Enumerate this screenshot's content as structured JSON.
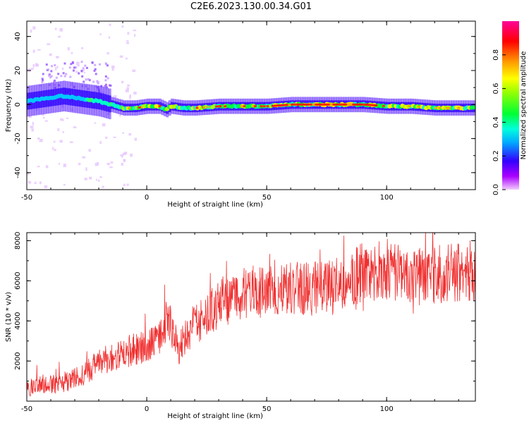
{
  "title": "C2E6.2023.130.00.34.G01",
  "chart_data": [
    {
      "type": "heatmap",
      "xlabel": "Height of straight line (km)",
      "ylabel": "Frequency (Hz)",
      "xlim": [
        -50,
        137
      ],
      "ylim": [
        -50,
        49
      ],
      "xticks": [
        -50,
        0,
        50,
        100
      ],
      "yticks": [
        -40,
        -20,
        0,
        20,
        40
      ],
      "ridge": [
        [
          -50,
          2
        ],
        [
          -45,
          3
        ],
        [
          -40,
          4
        ],
        [
          -35,
          5
        ],
        [
          -30,
          4
        ],
        [
          -25,
          3
        ],
        [
          -20,
          2
        ],
        [
          -15,
          0
        ],
        [
          -10,
          -2
        ],
        [
          -5,
          -2
        ],
        [
          0,
          -1
        ],
        [
          5,
          -1
        ],
        [
          8,
          -3
        ],
        [
          10,
          -1
        ],
        [
          15,
          -2
        ],
        [
          20,
          -2
        ],
        [
          30,
          -1
        ],
        [
          40,
          -1
        ],
        [
          50,
          -1
        ],
        [
          60,
          0
        ],
        [
          70,
          0
        ],
        [
          80,
          0
        ],
        [
          90,
          0
        ],
        [
          100,
          -1
        ],
        [
          110,
          -1
        ],
        [
          120,
          -2
        ],
        [
          130,
          -2
        ],
        [
          137,
          -2
        ]
      ],
      "colorbar": {
        "label": "Normalized spectral amplitude",
        "range": [
          0,
          1
        ],
        "ticks": [
          0.0,
          0.2,
          0.4,
          0.6,
          0.8
        ]
      }
    },
    {
      "type": "line",
      "xlabel": "Height of straight line (km)",
      "ylabel": "SNR (10 * v/v)",
      "xlim": [
        -50,
        137
      ],
      "ylim": [
        0,
        8400
      ],
      "xticks": [
        -50,
        0,
        50,
        100
      ],
      "yticks": [
        2000,
        4000,
        6000,
        8000
      ],
      "color": "#f03030",
      "trend": [
        [
          -50,
          700
        ],
        [
          -40,
          800
        ],
        [
          -30,
          1100
        ],
        [
          -20,
          1900
        ],
        [
          -10,
          2400
        ],
        [
          -5,
          2600
        ],
        [
          0,
          2700
        ],
        [
          5,
          3200
        ],
        [
          9,
          4200
        ],
        [
          13,
          2600
        ],
        [
          20,
          3700
        ],
        [
          30,
          4800
        ],
        [
          40,
          5400
        ],
        [
          50,
          5500
        ],
        [
          60,
          5700
        ],
        [
          70,
          5600
        ],
        [
          80,
          5900
        ],
        [
          90,
          6400
        ],
        [
          100,
          6600
        ],
        [
          110,
          6200
        ],
        [
          120,
          6300
        ],
        [
          130,
          6500
        ],
        [
          137,
          6500
        ]
      ]
    }
  ]
}
